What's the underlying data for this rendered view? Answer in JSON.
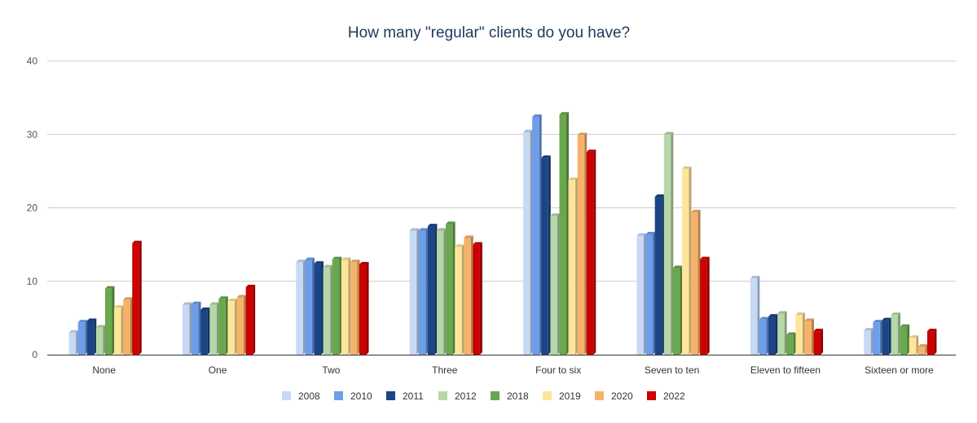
{
  "chart_data": {
    "type": "bar",
    "title": "How many \"regular\" clients do you have?",
    "xlabel": "",
    "ylabel": "",
    "ylim": [
      0,
      40
    ],
    "yticks": [
      0,
      10,
      20,
      30,
      40
    ],
    "grid": true,
    "legend_position": "bottom",
    "categories": [
      "None",
      "One",
      "Two",
      "Three",
      "Four to six",
      "Seven to ten",
      "Eleven to fifteen",
      "Sixteen or more"
    ],
    "series": [
      {
        "name": "2008",
        "color": "#c6d9f5",
        "values": [
          3.0,
          6.8,
          12.6,
          16.9,
          30.3,
          16.2,
          10.4,
          3.3
        ]
      },
      {
        "name": "2010",
        "color": "#6d9eeb",
        "values": [
          4.4,
          6.9,
          12.9,
          16.9,
          32.4,
          16.4,
          4.8,
          4.4
        ]
      },
      {
        "name": "2011",
        "color": "#1c4587",
        "values": [
          4.6,
          6.1,
          12.4,
          17.5,
          26.8,
          21.5,
          5.2,
          4.7
        ]
      },
      {
        "name": "2012",
        "color": "#b6d7a8",
        "values": [
          3.7,
          6.8,
          11.9,
          16.9,
          18.9,
          30.0,
          5.6,
          5.4
        ]
      },
      {
        "name": "2018",
        "color": "#6aa84f",
        "values": [
          9.0,
          7.6,
          13.0,
          17.8,
          32.7,
          11.8,
          2.7,
          3.8
        ]
      },
      {
        "name": "2019",
        "color": "#ffe599",
        "values": [
          6.4,
          7.3,
          12.9,
          14.7,
          23.8,
          25.3,
          5.4,
          2.3
        ]
      },
      {
        "name": "2020",
        "color": "#f6b26b",
        "values": [
          7.5,
          7.8,
          12.6,
          15.9,
          29.9,
          19.4,
          4.6,
          1.1
        ]
      },
      {
        "name": "2022",
        "color": "#cc0000",
        "values": [
          15.2,
          9.2,
          12.3,
          15.0,
          27.6,
          13.0,
          3.2,
          3.2
        ]
      }
    ]
  }
}
